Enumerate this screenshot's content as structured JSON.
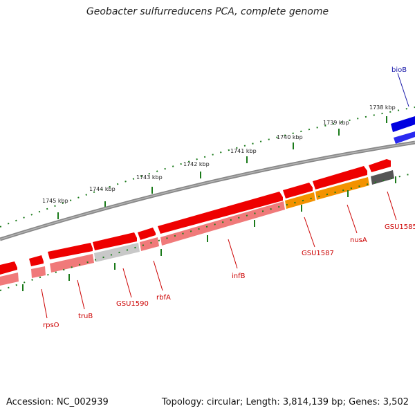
{
  "title": "Geobacter sulfurreducens PCA, complete genome",
  "footer": {
    "accession": "Accession: NC_002939",
    "topology": "Topology: circular; Length: 3,814,139 bp; Genes: 3,502"
  },
  "kbp_labels": [
    "1738 kbp",
    "1739 kbp",
    "1740 kbp",
    "1741 kbp",
    "1742 kbp",
    "1743 kbp",
    "1744 kbp",
    "1745 kbp"
  ],
  "genes": {
    "bioB": "bioB",
    "GSU1585": "GSU1585",
    "nusA": "nusA",
    "GSU1587": "GSU1587",
    "infB": "infB",
    "rbfA": "rbfA",
    "GSU1590": "GSU1590",
    "truB": "truB",
    "rpsO": "rpsO"
  },
  "colors": {
    "backbone": "#7a7a7a",
    "gene_red": "#ee0000",
    "gene_pink": "#f07a7a",
    "gene_orange": "#f39200",
    "gene_blue": "#0000e0",
    "gene_grey": "#555555",
    "tick_green": "#1a7a1a"
  }
}
